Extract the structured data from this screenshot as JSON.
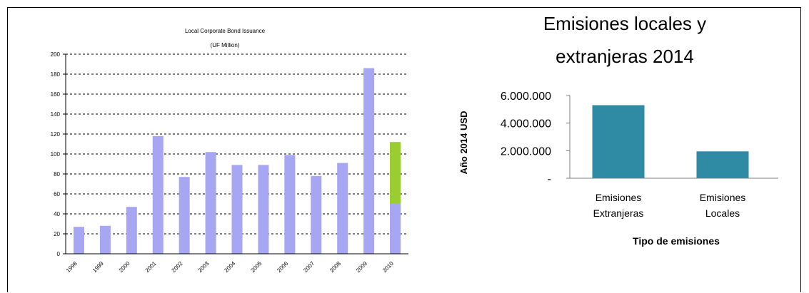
{
  "chart_data": [
    {
      "type": "bar",
      "title": "Local Corporate Bond Issuance",
      "subtitle": "(UF Million)",
      "categories": [
        "1998",
        "1999",
        "2000",
        "2001",
        "2002",
        "2003",
        "2004",
        "2005",
        "2006",
        "2007",
        "2008",
        "2009",
        "2010"
      ],
      "series": [
        {
          "values": [
            27,
            28,
            47,
            118,
            77,
            102,
            89,
            89,
            99,
            78,
            91,
            186,
            50
          ],
          "color": "#a6a6f2"
        },
        {
          "values": [
            0,
            0,
            0,
            0,
            0,
            0,
            0,
            0,
            0,
            0,
            0,
            0,
            62
          ],
          "color": "#9acd32"
        }
      ],
      "stacked": true,
      "ylim": [
        0,
        200
      ],
      "yticks": [
        0,
        20,
        40,
        60,
        80,
        100,
        120,
        140,
        160,
        180,
        200
      ],
      "ytick_labels": [
        "0",
        "20",
        "40",
        "60",
        "80",
        "100",
        "120",
        "140",
        "160",
        "180",
        "200"
      ],
      "grid": "horizontal-dashed"
    },
    {
      "type": "bar",
      "title": "Emisiones locales y extranjeras 2014",
      "title_lines": [
        "Emisiones locales y",
        "extranjeras 2014"
      ],
      "categories": [
        "Emisiones Extranjeras",
        "Emisiones Locales"
      ],
      "category_lines": [
        [
          "Emisiones",
          "Extranjeras"
        ],
        [
          "Emisiones",
          "Locales"
        ]
      ],
      "values": [
        5300000,
        1950000
      ],
      "color": "#2e8ba3",
      "xlabel": "Tipo de emisiones",
      "ylabel": "Año 2014 USD",
      "ylim": [
        0,
        6000000
      ],
      "yticks": [
        0,
        2000000,
        4000000,
        6000000
      ],
      "ytick_labels": [
        "-",
        "2.000.000",
        "4.000.000",
        "6.000.000"
      ],
      "grid": false
    }
  ]
}
